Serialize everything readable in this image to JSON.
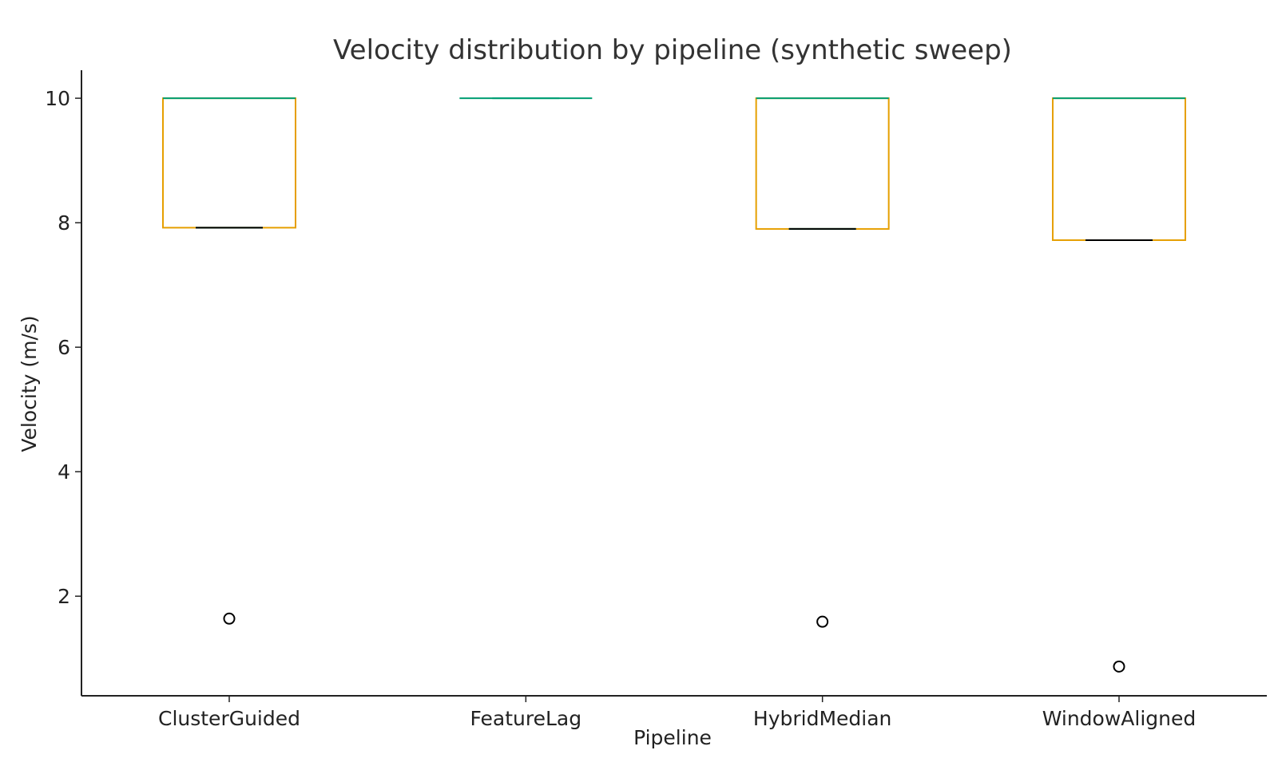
{
  "chart_data": {
    "type": "box",
    "title": "Velocity distribution by pipeline (synthetic sweep)",
    "xlabel": "Pipeline",
    "ylabel": "Velocity (m/s)",
    "categories": [
      "ClusterGuided",
      "FeatureLag",
      "HybridMedian",
      "WindowAligned"
    ],
    "y_ticks": [
      "2",
      "4",
      "6",
      "8",
      "10"
    ],
    "ylim": [
      0.4,
      10.45
    ],
    "grid": false,
    "boxes": [
      {
        "category": "ClusterGuided",
        "q1": 7.92,
        "median": 7.92,
        "q3": 10.0,
        "whisker_low": 7.92,
        "whisker_high": 10.0,
        "outliers": [
          1.64
        ]
      },
      {
        "category": "FeatureLag",
        "q1": 10.0,
        "median": 10.0,
        "q3": 10.0,
        "whisker_low": 10.0,
        "whisker_high": 10.0,
        "outliers": []
      },
      {
        "category": "HybridMedian",
        "q1": 7.9,
        "median": 7.9,
        "q3": 10.0,
        "whisker_low": 7.9,
        "whisker_high": 10.0,
        "outliers": [
          1.59
        ]
      },
      {
        "category": "WindowAligned",
        "q1": 7.72,
        "median": 7.72,
        "q3": 10.0,
        "whisker_low": 7.72,
        "whisker_high": 10.0,
        "outliers": [
          0.87
        ]
      }
    ],
    "colors": {
      "box": "#E69F00",
      "median": "#000000",
      "whisker_cap": "#009E73",
      "outlier": "#000000",
      "axis": "#222222",
      "title": "#333333"
    }
  }
}
